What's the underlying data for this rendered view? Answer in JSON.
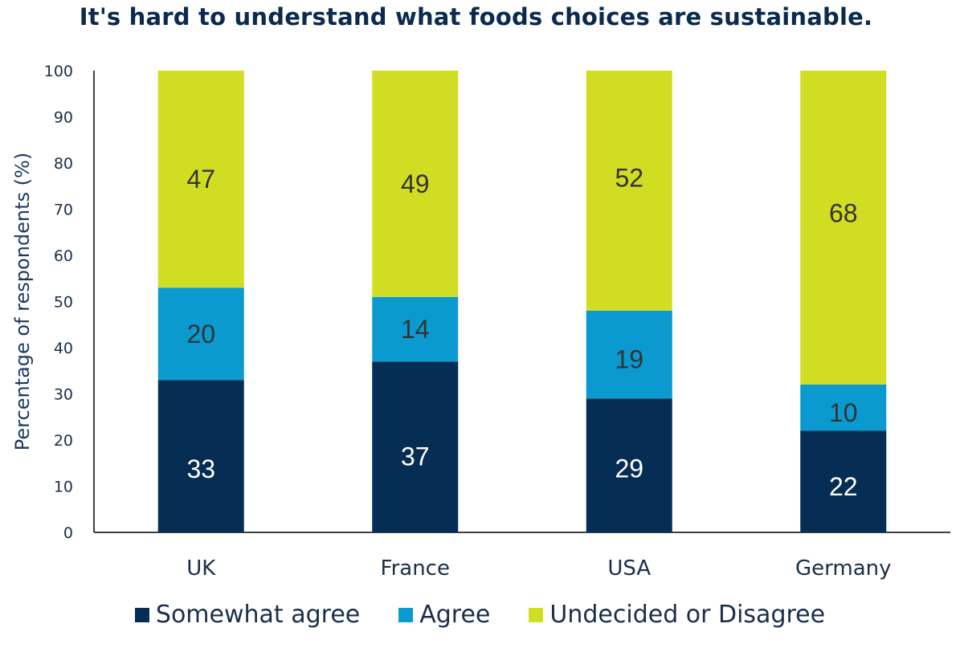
{
  "chart_data": {
    "type": "bar",
    "stacked": true,
    "title": "It's hard to understand what foods choices are sustainable.",
    "ylabel": "Percentage of respondents (%)",
    "xlabel": "",
    "ylim": [
      0,
      100
    ],
    "yticks": [
      0,
      10,
      20,
      30,
      40,
      50,
      60,
      70,
      80,
      90,
      100
    ],
    "categories": [
      "UK",
      "France",
      "USA",
      "Germany"
    ],
    "series": [
      {
        "name": "Somewhat agree",
        "values": [
          33,
          37,
          29,
          22
        ],
        "color": "#062d53",
        "label_color": "#ffffff"
      },
      {
        "name": "Agree",
        "values": [
          20,
          14,
          19,
          10
        ],
        "color": "#0a9ad0",
        "label_color": "#333333"
      },
      {
        "name": "Undecided or Disagree",
        "values": [
          47,
          49,
          52,
          68
        ],
        "color": "#d1dd22",
        "label_color": "#333333"
      }
    ],
    "grid": false,
    "legend_position": "bottom"
  }
}
